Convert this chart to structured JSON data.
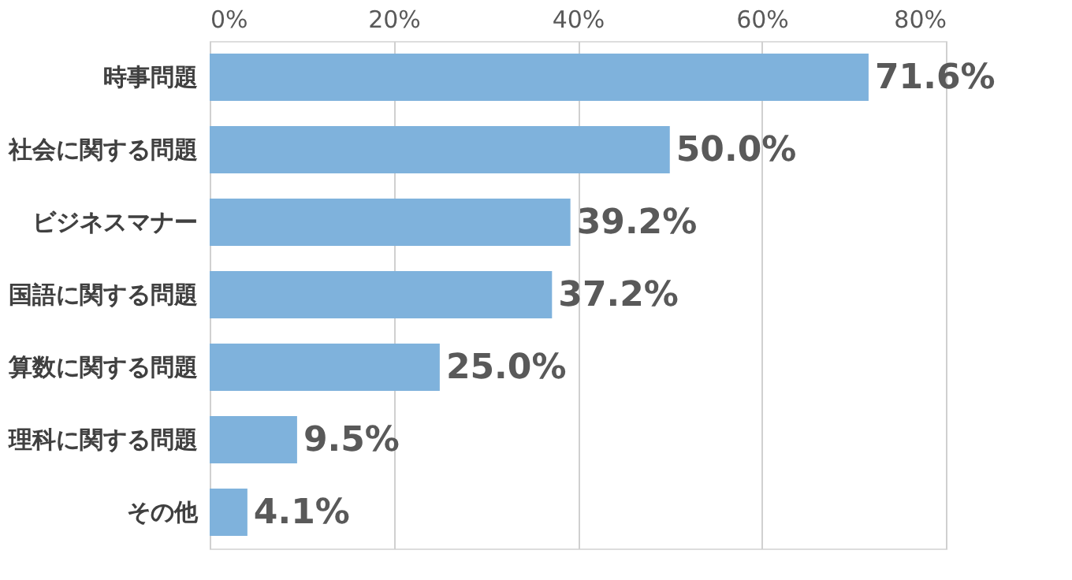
{
  "chart_data": {
    "type": "bar",
    "orientation": "horizontal",
    "categories": [
      "時事問題",
      "社会に関する問題",
      "ビジネスマナー",
      "国語に関する問題",
      "算数に関する問題",
      "理科に関する問題",
      "その他"
    ],
    "values": [
      71.6,
      50.0,
      39.2,
      37.2,
      25.0,
      9.5,
      4.1
    ],
    "color": "#7fb2dc",
    "value_labels": [
      "71.6%",
      "50.0%",
      "39.2%",
      "37.2%",
      "25.0%",
      "9.5%",
      "4.1%"
    ],
    "xlim": [
      0,
      80
    ],
    "xticks": [
      {
        "value": 0,
        "label": "0%"
      },
      {
        "value": 20,
        "label": "20%"
      },
      {
        "value": 40,
        "label": "40%"
      },
      {
        "value": 60,
        "label": "60%"
      },
      {
        "value": 80,
        "label": "80%"
      }
    ],
    "grid": "x"
  }
}
